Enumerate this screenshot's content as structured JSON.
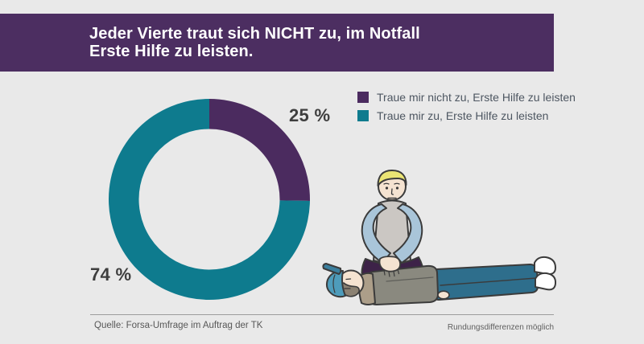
{
  "header": {
    "title_line1": "Jeder Vierte traut sich NICHT zu, im Notfall",
    "title_line2": "Erste Hilfe zu leisten."
  },
  "chart_data": {
    "type": "pie",
    "donut": true,
    "title": "Jeder Vierte traut sich NICHT zu, im Notfall Erste Hilfe zu leisten.",
    "segments": [
      {
        "label": "Traue mir nicht zu, Erste Hilfe zu leisten",
        "value": 25,
        "display": "25 %",
        "color": "#4b2b5f"
      },
      {
        "label": "Traue mir zu, Erste Hilfe zu leisten",
        "value": 74,
        "display": "74 %",
        "color": "#0e7b8e"
      }
    ],
    "start_angle_deg": 0,
    "direction": "clockwise",
    "inner_radius_ratio": 0.7,
    "legend_position": "right",
    "annotations": [
      "25 %",
      "74 %"
    ]
  },
  "footer": {
    "source": "Quelle: Forsa-Umfrage im Auftrag der TK",
    "note": "Rundungsdifferenzen möglich"
  },
  "colors": {
    "background": "#e9e9e9",
    "header_bg": "#4c2e61",
    "purple": "#4b2b5f",
    "teal": "#0e7b8e",
    "label_text": "#3e3e3e"
  }
}
